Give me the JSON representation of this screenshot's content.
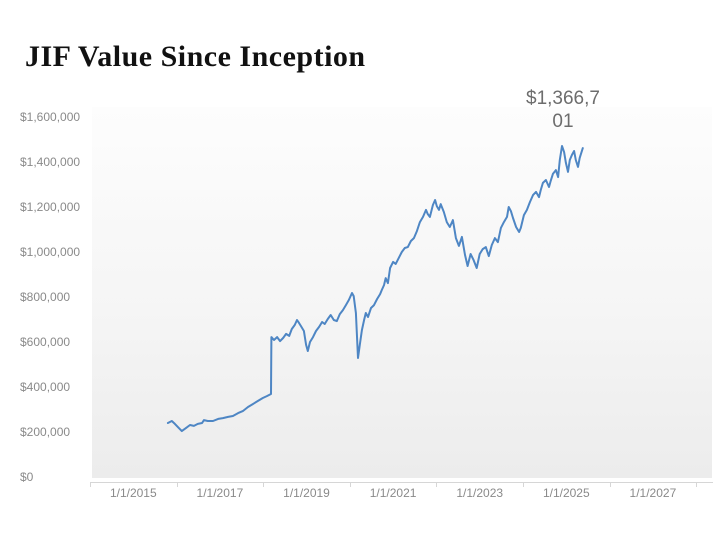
{
  "slide": {
    "title": "JIF Value Since Inception"
  },
  "chart_data": {
    "type": "line",
    "title": "JIF Value Since Inception",
    "grid": false,
    "legend": false,
    "line_color": "#4e86c4",
    "x_axis": {
      "tick_labels": [
        "1/1/2015",
        "1/1/2017",
        "1/1/2019",
        "1/1/2021",
        "1/1/2023",
        "1/1/2025",
        "1/1/2027"
      ],
      "range_years": [
        2014.0,
        2028.4
      ]
    },
    "y_axis": {
      "tick_values": [
        0,
        200000,
        400000,
        600000,
        800000,
        1000000,
        1200000,
        1400000,
        1600000
      ],
      "tick_labels": [
        "$0",
        "$200,000",
        "$400,000",
        "$600,000",
        "$800,000",
        "$1,000,000",
        "$1,200,000",
        "$1,400,000",
        "$1,600,000"
      ],
      "range": [
        0,
        1600000
      ]
    },
    "annotation": {
      "full_value": "$1,366,701",
      "display_line1": "$1,366,7",
      "display_line2": "01"
    },
    "series": [
      {
        "points": [
          [
            2015.8,
            240000
          ],
          [
            2015.89,
            249000
          ],
          [
            2015.96,
            236000
          ],
          [
            2016.03,
            222000
          ],
          [
            2016.12,
            204000
          ],
          [
            2016.22,
            218000
          ],
          [
            2016.31,
            231000
          ],
          [
            2016.4,
            227000
          ],
          [
            2016.49,
            236000
          ],
          [
            2016.59,
            240000
          ],
          [
            2016.63,
            253000
          ],
          [
            2016.72,
            249000
          ],
          [
            2016.84,
            249000
          ],
          [
            2016.96,
            258000
          ],
          [
            2017.07,
            262000
          ],
          [
            2017.19,
            267000
          ],
          [
            2017.3,
            271000
          ],
          [
            2017.42,
            284000
          ],
          [
            2017.53,
            293000
          ],
          [
            2017.65,
            311000
          ],
          [
            2017.76,
            324000
          ],
          [
            2017.88,
            338000
          ],
          [
            2017.99,
            351000
          ],
          [
            2018.09,
            360000
          ],
          [
            2018.18,
            369000
          ],
          [
            2018.19,
            622000
          ],
          [
            2018.25,
            609000
          ],
          [
            2018.32,
            622000
          ],
          [
            2018.39,
            604000
          ],
          [
            2018.46,
            618000
          ],
          [
            2018.53,
            636000
          ],
          [
            2018.6,
            627000
          ],
          [
            2018.66,
            658000
          ],
          [
            2018.73,
            676000
          ],
          [
            2018.78,
            698000
          ],
          [
            2018.83,
            684000
          ],
          [
            2018.87,
            671000
          ],
          [
            2018.94,
            649000
          ],
          [
            2018.99,
            587000
          ],
          [
            2019.03,
            560000
          ],
          [
            2019.08,
            600000
          ],
          [
            2019.15,
            622000
          ],
          [
            2019.22,
            649000
          ],
          [
            2019.29,
            667000
          ],
          [
            2019.36,
            689000
          ],
          [
            2019.42,
            680000
          ],
          [
            2019.49,
            702000
          ],
          [
            2019.56,
            720000
          ],
          [
            2019.63,
            698000
          ],
          [
            2019.7,
            693000
          ],
          [
            2019.77,
            724000
          ],
          [
            2019.84,
            742000
          ],
          [
            2019.91,
            764000
          ],
          [
            2019.98,
            787000
          ],
          [
            2020.05,
            818000
          ],
          [
            2020.09,
            804000
          ],
          [
            2020.14,
            729000
          ],
          [
            2020.19,
            529000
          ],
          [
            2020.23,
            587000
          ],
          [
            2020.28,
            653000
          ],
          [
            2020.33,
            698000
          ],
          [
            2020.37,
            729000
          ],
          [
            2020.42,
            711000
          ],
          [
            2020.49,
            751000
          ],
          [
            2020.56,
            764000
          ],
          [
            2020.63,
            791000
          ],
          [
            2020.7,
            813000
          ],
          [
            2020.74,
            831000
          ],
          [
            2020.79,
            853000
          ],
          [
            2020.83,
            884000
          ],
          [
            2020.88,
            862000
          ],
          [
            2020.93,
            929000
          ],
          [
            2021.0,
            956000
          ],
          [
            2021.06,
            947000
          ],
          [
            2021.13,
            973000
          ],
          [
            2021.2,
            1000000
          ],
          [
            2021.27,
            1018000
          ],
          [
            2021.34,
            1022000
          ],
          [
            2021.41,
            1049000
          ],
          [
            2021.48,
            1062000
          ],
          [
            2021.55,
            1093000
          ],
          [
            2021.62,
            1133000
          ],
          [
            2021.69,
            1156000
          ],
          [
            2021.76,
            1187000
          ],
          [
            2021.8,
            1169000
          ],
          [
            2021.85,
            1156000
          ],
          [
            2021.92,
            1209000
          ],
          [
            2021.97,
            1231000
          ],
          [
            2022.01,
            1204000
          ],
          [
            2022.06,
            1187000
          ],
          [
            2022.1,
            1213000
          ],
          [
            2022.17,
            1178000
          ],
          [
            2022.24,
            1133000
          ],
          [
            2022.31,
            1111000
          ],
          [
            2022.38,
            1142000
          ],
          [
            2022.45,
            1062000
          ],
          [
            2022.52,
            1027000
          ],
          [
            2022.59,
            1067000
          ],
          [
            2022.66,
            987000
          ],
          [
            2022.72,
            938000
          ],
          [
            2022.79,
            991000
          ],
          [
            2022.86,
            964000
          ],
          [
            2022.93,
            929000
          ],
          [
            2023.0,
            991000
          ],
          [
            2023.07,
            1013000
          ],
          [
            2023.14,
            1022000
          ],
          [
            2023.21,
            982000
          ],
          [
            2023.28,
            1031000
          ],
          [
            2023.35,
            1062000
          ],
          [
            2023.42,
            1044000
          ],
          [
            2023.49,
            1107000
          ],
          [
            2023.56,
            1133000
          ],
          [
            2023.63,
            1156000
          ],
          [
            2023.67,
            1200000
          ],
          [
            2023.72,
            1182000
          ],
          [
            2023.77,
            1151000
          ],
          [
            2023.84,
            1111000
          ],
          [
            2023.91,
            1089000
          ],
          [
            2023.95,
            1107000
          ],
          [
            2024.02,
            1164000
          ],
          [
            2024.09,
            1187000
          ],
          [
            2024.16,
            1222000
          ],
          [
            2024.23,
            1253000
          ],
          [
            2024.3,
            1267000
          ],
          [
            2024.37,
            1244000
          ],
          [
            2024.41,
            1276000
          ],
          [
            2024.46,
            1307000
          ],
          [
            2024.53,
            1320000
          ],
          [
            2024.6,
            1289000
          ],
          [
            2024.64,
            1316000
          ],
          [
            2024.69,
            1347000
          ],
          [
            2024.76,
            1364000
          ],
          [
            2024.81,
            1333000
          ],
          [
            2024.85,
            1409000
          ],
          [
            2024.9,
            1471000
          ],
          [
            2024.95,
            1444000
          ],
          [
            2024.99,
            1396000
          ],
          [
            2025.04,
            1356000
          ],
          [
            2025.08,
            1409000
          ],
          [
            2025.13,
            1431000
          ],
          [
            2025.18,
            1449000
          ],
          [
            2025.22,
            1409000
          ],
          [
            2025.27,
            1378000
          ],
          [
            2025.31,
            1418000
          ],
          [
            2025.38,
            1462000
          ]
        ]
      }
    ]
  },
  "colors": {
    "line": "#4e86c4",
    "axis_text": "#8a8a8a",
    "axis_line": "#d6d6d6",
    "annotation_text": "#6d6d6d",
    "title_text": "#111111"
  }
}
